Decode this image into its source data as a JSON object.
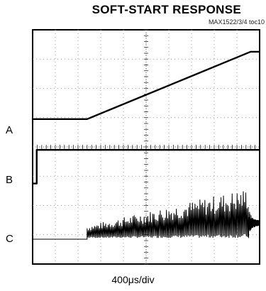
{
  "chart_data": {
    "type": "line",
    "title": "SOFT-START RESPONSE",
    "figure_id": "MAX1522/3/4 toc10",
    "xlabel": "400μs/div",
    "grid": true,
    "divisions": {
      "x": 10,
      "y": 8
    },
    "x_units": "div",
    "xlim": [
      0,
      10
    ],
    "ylim": [
      0,
      8
    ],
    "series": [
      {
        "name": "A",
        "x": [
          0,
          2.4,
          9.6,
          10
        ],
        "y": [
          4.95,
          4.95,
          7.25,
          7.25
        ]
      },
      {
        "name": "B",
        "x": [
          0,
          0.18,
          0.18,
          10
        ],
        "y": [
          2.75,
          2.75,
          3.9,
          3.9
        ]
      },
      {
        "name": "C",
        "x": [
          0,
          2.4,
          2.4,
          9.5,
          9.5,
          10
        ],
        "y": [
          0.85,
          0.85,
          1.3,
          2.6,
          1.4,
          1.4
        ],
        "ripple": true
      }
    ]
  },
  "labels": {
    "a": "A",
    "b": "B",
    "c": "C"
  }
}
